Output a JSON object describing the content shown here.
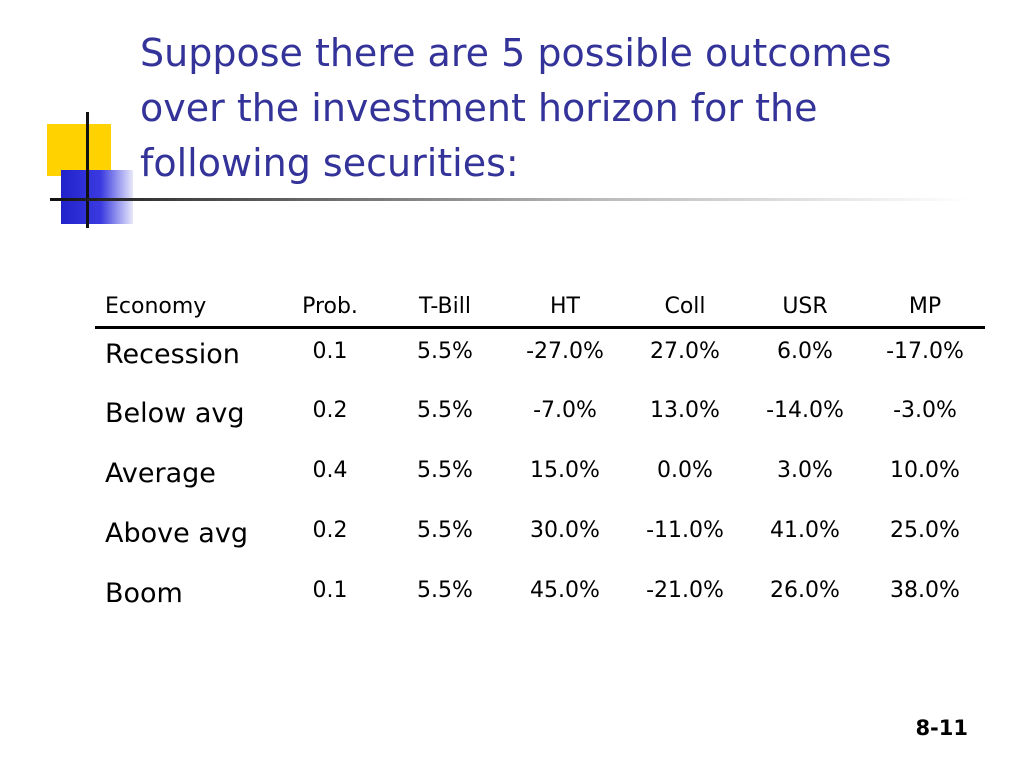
{
  "title": "Suppose there are 5 possible outcomes over the investment horizon for the following securities:",
  "table": {
    "headers": [
      "Economy",
      "Prob.",
      "T-Bill",
      "HT",
      "Coll",
      "USR",
      "MP"
    ],
    "rows": [
      {
        "economy": "Recession",
        "prob": "0.1",
        "tbill": "5.5%",
        "ht": "-27.0%",
        "coll": "27.0%",
        "usr": "6.0%",
        "mp": "-17.0%"
      },
      {
        "economy": "Below avg",
        "prob": "0.2",
        "tbill": "5.5%",
        "ht": "-7.0%",
        "coll": "13.0%",
        "usr": "-14.0%",
        "mp": "-3.0%"
      },
      {
        "economy": "Average",
        "prob": "0.4",
        "tbill": "5.5%",
        "ht": "15.0%",
        "coll": "0.0%",
        "usr": "3.0%",
        "mp": "10.0%"
      },
      {
        "economy": "Above avg",
        "prob": "0.2",
        "tbill": "5.5%",
        "ht": "30.0%",
        "coll": "-11.0%",
        "usr": "41.0%",
        "mp": "25.0%"
      },
      {
        "economy": "Boom",
        "prob": "0.1",
        "tbill": "5.5%",
        "ht": "45.0%",
        "coll": "-21.0%",
        "usr": "26.0%",
        "mp": "38.0%"
      }
    ]
  },
  "page_number": "8-11",
  "colors": {
    "title": "#333399",
    "accent_yellow": "#ffd200",
    "accent_blue": "#2222cc"
  }
}
